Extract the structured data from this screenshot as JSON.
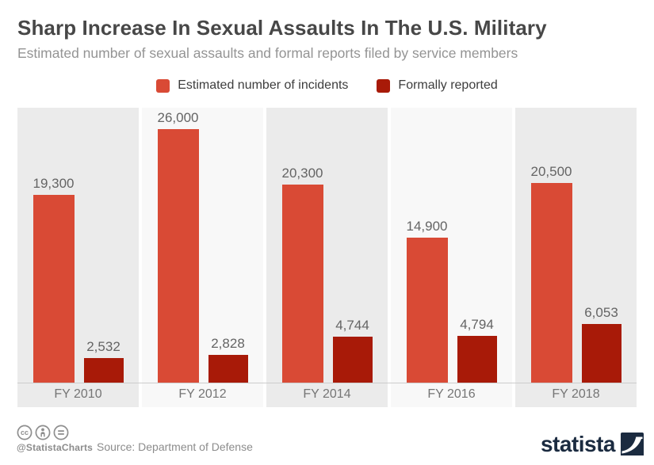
{
  "header": {
    "title": "Sharp Increase In Sexual Assaults In The U.S. Military",
    "subtitle": "Estimated number of sexual assaults and formal reports filed by service members"
  },
  "legend": [
    {
      "label": "Estimated number of incidents",
      "color": "#d94a35"
    },
    {
      "label": "Formally reported",
      "color": "#a81a08"
    }
  ],
  "chart_data": {
    "type": "bar",
    "categories": [
      "FY 2010",
      "FY 2012",
      "FY 2014",
      "FY 2016",
      "FY 2018"
    ],
    "series": [
      {
        "name": "Estimated number of incidents",
        "color": "#d94a35",
        "values": [
          19300,
          26000,
          20300,
          14900,
          20500
        ]
      },
      {
        "name": "Formally reported",
        "color": "#a81a08",
        "values": [
          2532,
          2828,
          4744,
          4794,
          6053
        ]
      }
    ],
    "value_labels": {
      "estimated": [
        "19,300",
        "26,000",
        "20,300",
        "14,900",
        "20,500"
      ],
      "reported": [
        "2,532",
        "2,828",
        "4,744",
        "4,794",
        "6,053"
      ]
    },
    "title": "Sharp Increase In Sexual Assaults In The U.S. Military",
    "xlabel": "",
    "ylabel": "",
    "ylim": [
      0,
      28200
    ],
    "grid": false,
    "legend_position": "top",
    "stripe_colors": {
      "dark": "#ebebeb",
      "light": "#f8f8f8"
    },
    "axis_color": "#cccccc"
  },
  "footer": {
    "icons": [
      "cc-icon",
      "attribution-person-icon",
      "equals-icon"
    ],
    "handle": "@StatistaCharts",
    "source": "Source: Department of Defense",
    "brand": "statista"
  }
}
